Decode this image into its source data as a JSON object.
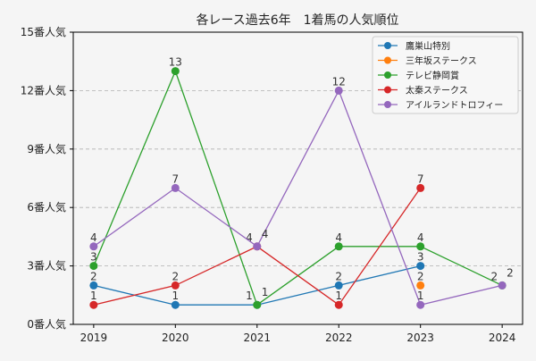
{
  "chart_data": {
    "type": "line",
    "title": "各レース過去6年　1着馬の人気順位",
    "xlabel": "",
    "ylabel": "",
    "x": [
      2019,
      2020,
      2021,
      2022,
      2023,
      2024
    ],
    "xlim": [
      2018.75,
      2024.25
    ],
    "ylim": [
      0,
      15
    ],
    "yticks": [
      0,
      3,
      6,
      9,
      12,
      15
    ],
    "ytick_suffix": "番人気",
    "grid": "y-dashed",
    "legend_position": "top-right",
    "series": [
      {
        "name": "鷹巣山特別",
        "color": "#1f77b4",
        "values": [
          2,
          1,
          1,
          2,
          3,
          null
        ]
      },
      {
        "name": "三年坂ステークス",
        "color": "#ff7f0e",
        "values": [
          null,
          null,
          null,
          null,
          2,
          null
        ]
      },
      {
        "name": "テレビ静岡賞",
        "color": "#2ca02c",
        "values": [
          3,
          13,
          1,
          4,
          4,
          2
        ]
      },
      {
        "name": "太秦ステークス",
        "color": "#d62728",
        "values": [
          1,
          2,
          4,
          1,
          7,
          null
        ]
      },
      {
        "name": "アイルランドトロフィー",
        "color": "#9467bd",
        "values": [
          4,
          7,
          4,
          12,
          1,
          2
        ]
      }
    ]
  }
}
